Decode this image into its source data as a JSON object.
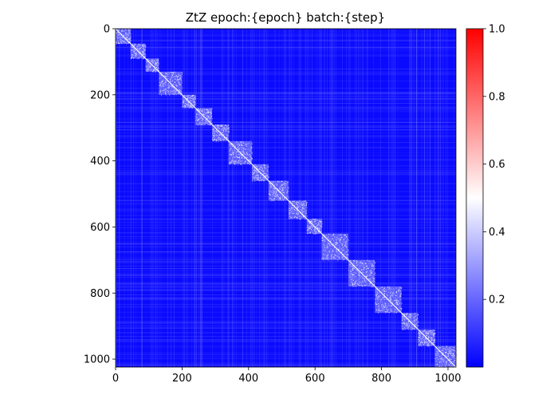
{
  "chart_data": {
    "type": "heatmap",
    "title": "ZtZ epoch:{epoch} batch:{step}",
    "xlabel": "",
    "ylabel": "",
    "matrix_size": 1024,
    "xlim": [
      0,
      1024
    ],
    "ylim": [
      1024,
      0
    ],
    "x_ticks": [
      0,
      200,
      400,
      600,
      800,
      1000
    ],
    "y_ticks": [
      0,
      200,
      400,
      600,
      800,
      1000
    ],
    "diagonal_value": 1.0,
    "background_value_range": [
      0.0,
      0.2
    ],
    "block_value_range": [
      0.2,
      0.5
    ],
    "diagonal_blocks": [
      {
        "start": 0,
        "end": 45
      },
      {
        "start": 45,
        "end": 90
      },
      {
        "start": 90,
        "end": 130
      },
      {
        "start": 130,
        "end": 200
      },
      {
        "start": 200,
        "end": 240
      },
      {
        "start": 240,
        "end": 290
      },
      {
        "start": 290,
        "end": 340
      },
      {
        "start": 340,
        "end": 410
      },
      {
        "start": 410,
        "end": 460
      },
      {
        "start": 460,
        "end": 520
      },
      {
        "start": 520,
        "end": 575
      },
      {
        "start": 575,
        "end": 620
      },
      {
        "start": 620,
        "end": 700
      },
      {
        "start": 700,
        "end": 780
      },
      {
        "start": 780,
        "end": 860
      },
      {
        "start": 860,
        "end": 910
      },
      {
        "start": 910,
        "end": 960
      },
      {
        "start": 960,
        "end": 1024
      }
    ],
    "colorbar": {
      "colormap": "bwr",
      "range": [
        0,
        1.0
      ],
      "ticks": [
        0.2,
        0.4,
        0.6,
        0.8,
        1.0
      ],
      "tick_labels": [
        "0.2",
        "0.4",
        "0.6",
        "0.8",
        "1.0"
      ],
      "colors": {
        "low": "#0000ff",
        "mid": "#ffffff",
        "high": "#ff0000"
      }
    },
    "grid": false,
    "legend": "none"
  }
}
